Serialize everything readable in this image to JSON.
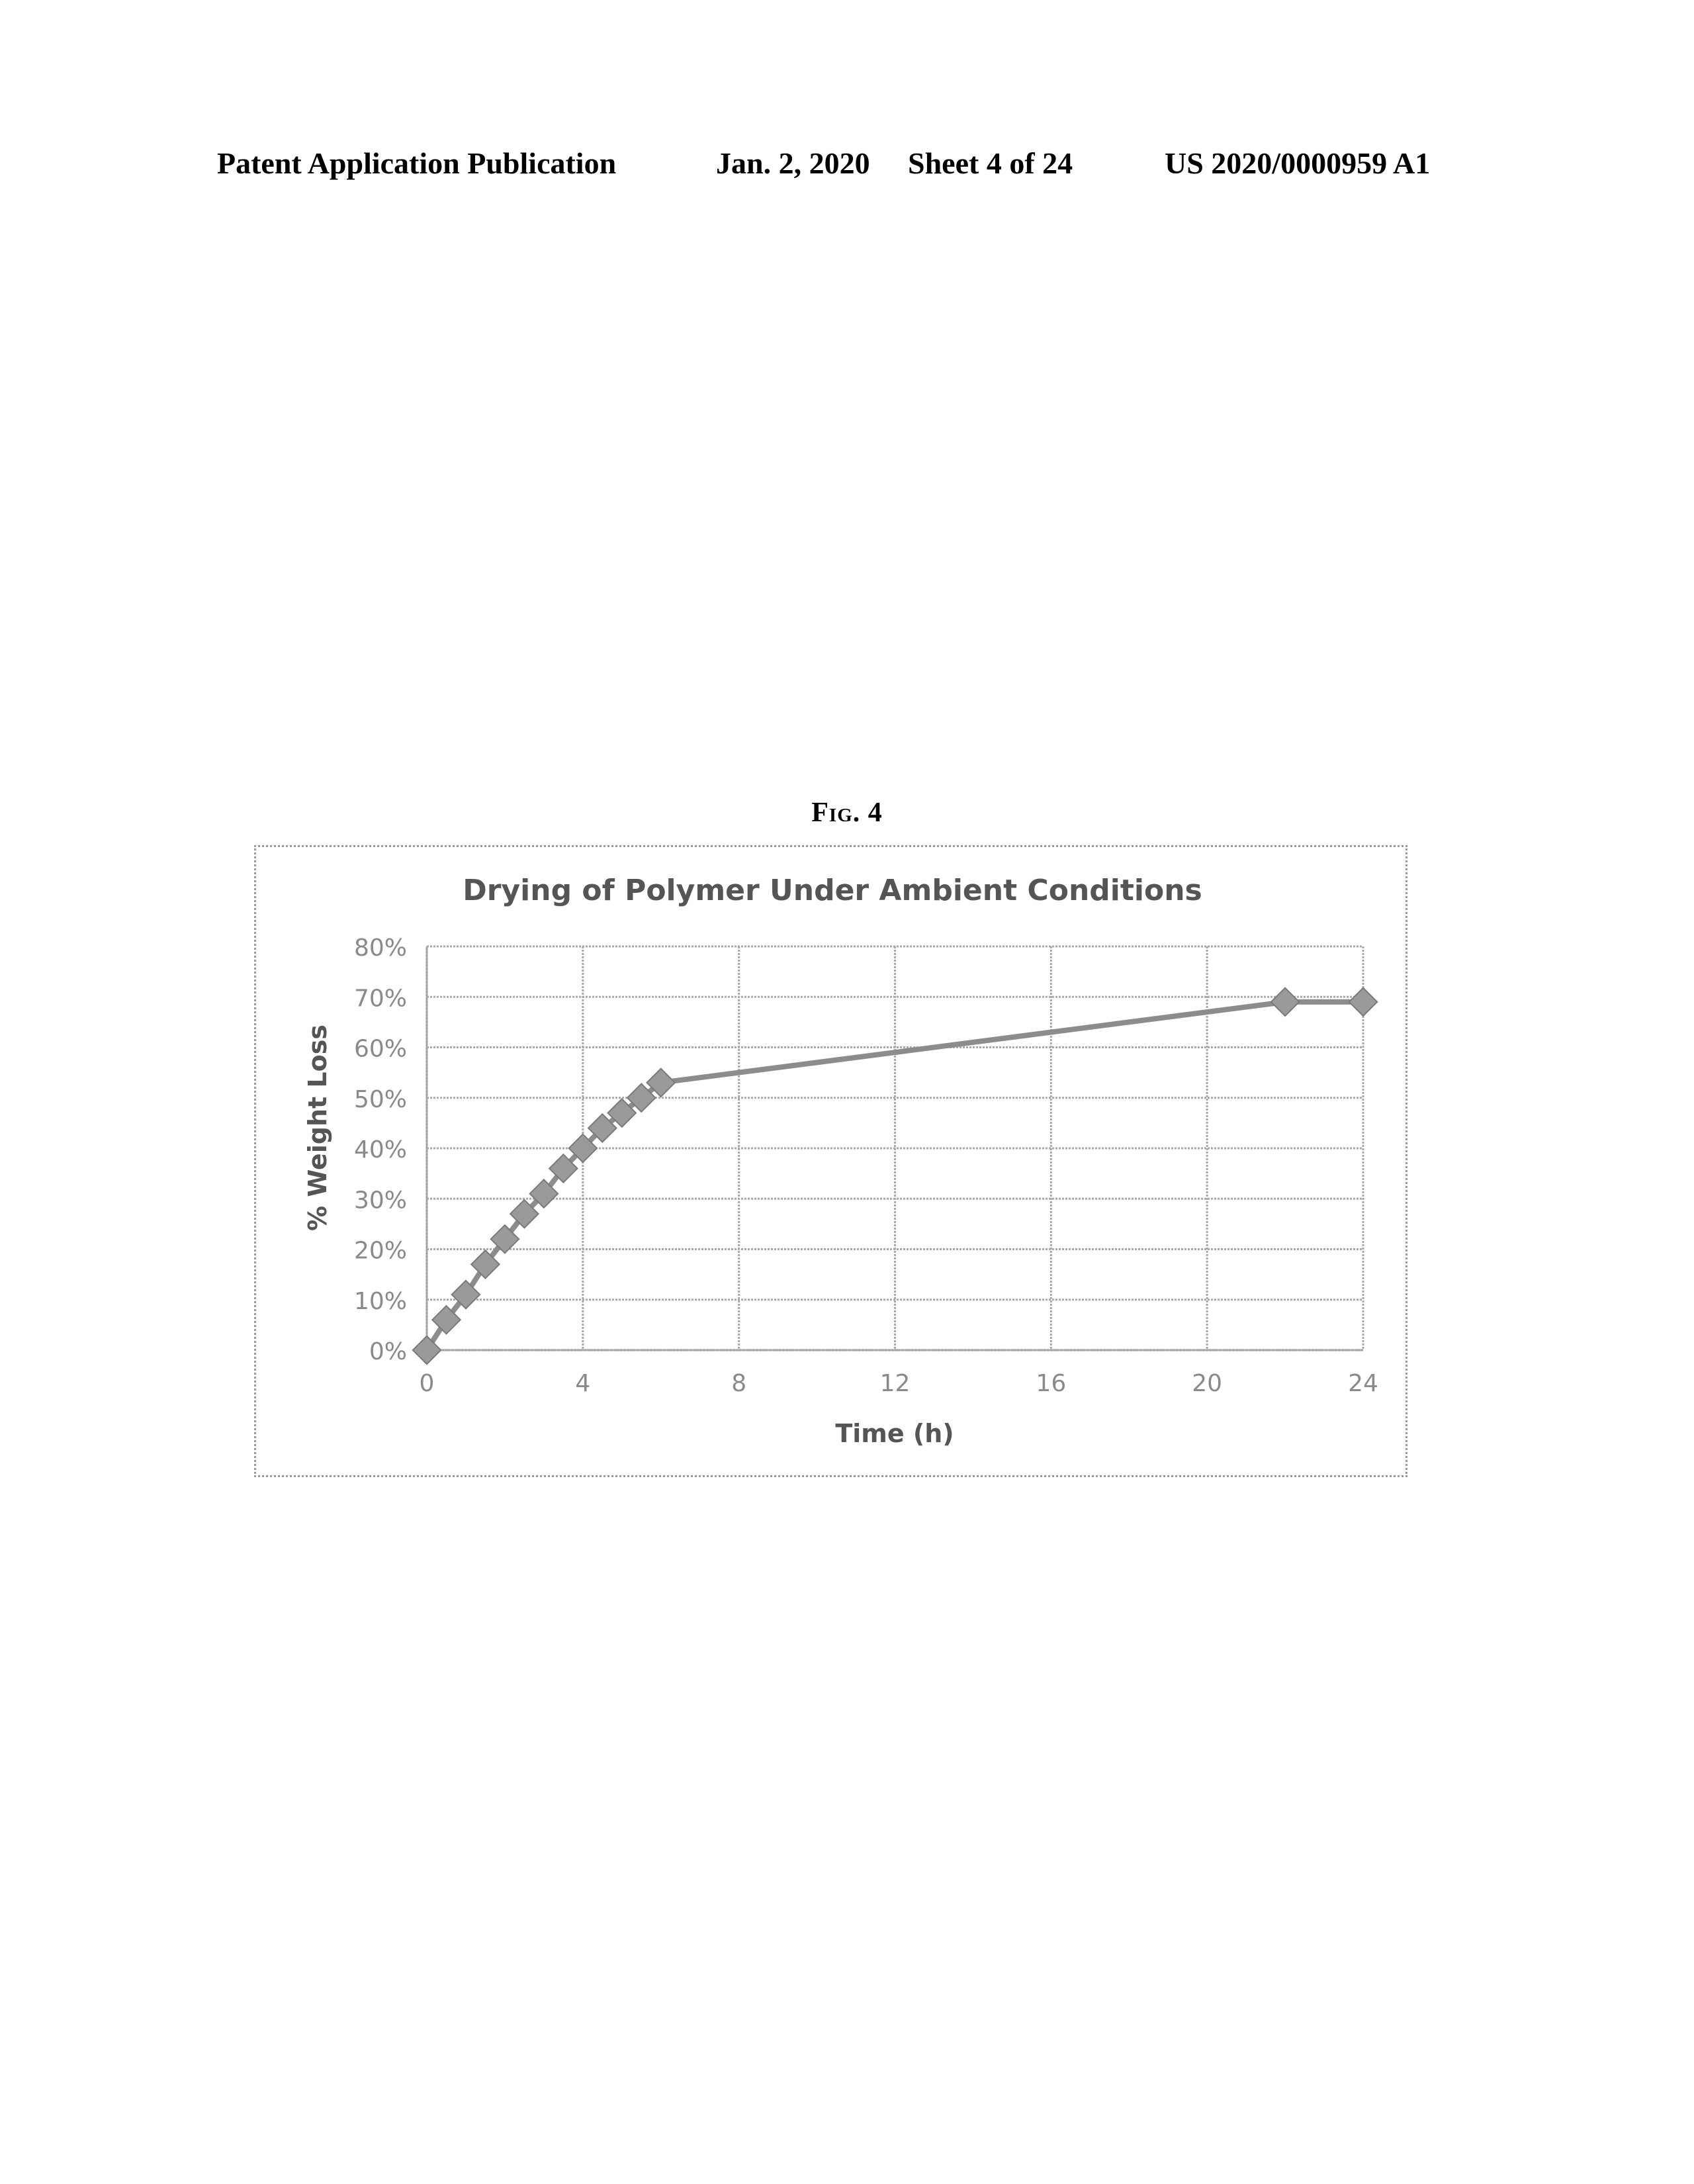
{
  "header": {
    "publication": "Patent Application Publication",
    "date": "Jan. 2, 2020",
    "sheet": "Sheet 4 of 24",
    "number": "US 2020/0000959 A1"
  },
  "figure": {
    "label": "Fig. 4"
  },
  "chart_data": {
    "type": "line",
    "title": "Drying of Polymer Under Ambient Conditions",
    "xlabel": "Time (h)",
    "ylabel": "% Weight Loss",
    "xlim": [
      0,
      24
    ],
    "ylim": [
      0,
      0.8
    ],
    "x_ticks": [
      0,
      4,
      8,
      12,
      16,
      20,
      24
    ],
    "x_tick_labels": [
      "0",
      "4",
      "8",
      "12",
      "16",
      "20",
      "24"
    ],
    "y_ticks": [
      0,
      0.1,
      0.2,
      0.3,
      0.4,
      0.5,
      0.6,
      0.7,
      0.8
    ],
    "y_tick_labels": [
      "0%",
      "10%",
      "20%",
      "30%",
      "40%",
      "50%",
      "60%",
      "70%",
      "80%"
    ],
    "grid": true,
    "legend": "none",
    "marker": "square",
    "series": [
      {
        "color": "#8c8c8c",
        "x": [
          0,
          0.5,
          1,
          1.5,
          2,
          2.5,
          3,
          3.5,
          4,
          4.5,
          5,
          5.5,
          6,
          22,
          24
        ],
        "y": [
          0,
          0.06,
          0.11,
          0.17,
          0.22,
          0.27,
          0.31,
          0.36,
          0.4,
          0.44,
          0.47,
          0.5,
          0.53,
          0.69,
          0.69
        ]
      }
    ]
  }
}
